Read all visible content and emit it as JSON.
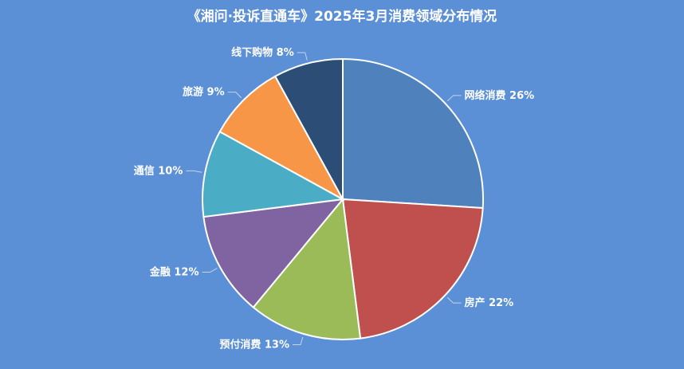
{
  "chart_data": {
    "type": "pie",
    "title": "《湘问·投诉直通车》2025年3月消费领域分布情况",
    "slices": [
      {
        "label": "网络消费",
        "value": 26,
        "color": "#4f81bd"
      },
      {
        "label": "房产",
        "value": 22,
        "color": "#c0504d"
      },
      {
        "label": "预付消费",
        "value": 13,
        "color": "#9bbb59"
      },
      {
        "label": "金融",
        "value": 12,
        "color": "#8064a2"
      },
      {
        "label": "通信",
        "value": 10,
        "color": "#4bacc6"
      },
      {
        "label": "旅游",
        "value": 9,
        "color": "#f79646"
      },
      {
        "label": "线下购物",
        "value": 8,
        "color": "#2c4d75"
      }
    ],
    "unit": "%",
    "grid": false,
    "legend": "none"
  }
}
